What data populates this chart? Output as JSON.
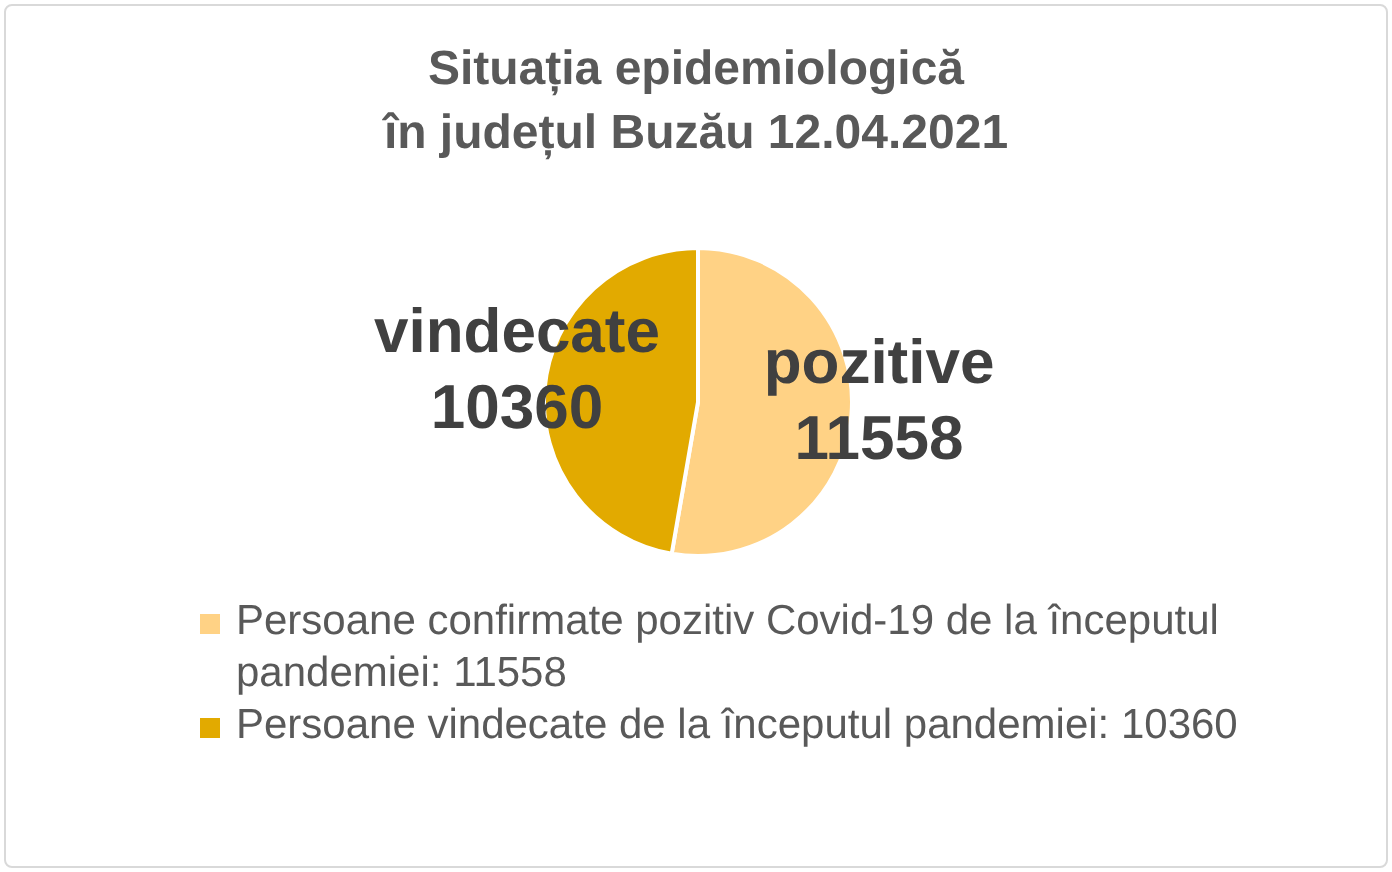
{
  "chart_data": {
    "type": "pie",
    "title": "Situația epidemiologică în județul Buzău 12.04.2021",
    "categories": [
      "Persoane confirmate pozitiv Covid-19 de la începutul pandemiei: 11558",
      "Persoane vindecate de la începutul pandemiei: 10360"
    ],
    "values": [
      11558,
      10360
    ],
    "colors": [
      "#ffd285",
      "#e2aa00"
    ],
    "value_labels": [
      "pozitive 11558",
      "vindecate 10360"
    ],
    "legend": "bottom"
  }
}
